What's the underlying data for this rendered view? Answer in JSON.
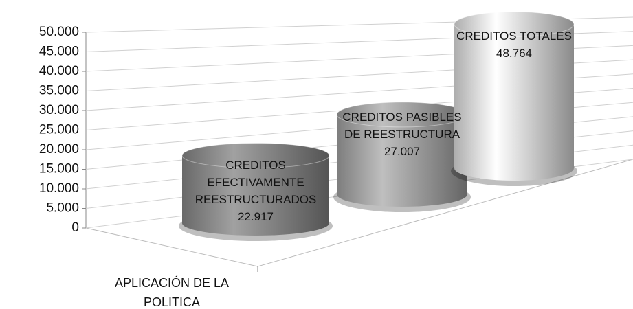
{
  "chart_data": {
    "type": "cylinder",
    "categories": [
      "APLICACIÓN DE LA POLITICA"
    ],
    "series": [
      {
        "name": "CREDITOS EFECTIVAMENTE REESTRUCTURADOS",
        "color": "#8c8c8c",
        "values": [
          22917
        ],
        "value_labels": [
          "22.917"
        ]
      },
      {
        "name": "CREDITOS PASIBLES DE REESTRUCTURA",
        "color": "#a6a6a6",
        "values": [
          27007
        ],
        "value_labels": [
          "27.007"
        ]
      },
      {
        "name": "CREDITOS TOTALES",
        "color": "#e6e6e6",
        "values": [
          48764
        ],
        "value_labels": [
          "48.764"
        ]
      }
    ],
    "ylim": [
      0,
      50000
    ],
    "yticks": [
      0,
      {
        "value": 5000,
        "label": "5.000"
      },
      {
        "value": 10000,
        "label": "10.000"
      },
      {
        "value": 15000,
        "label": "15.000"
      },
      {
        "value": 20000,
        "label": "20.000"
      },
      {
        "value": 25000,
        "label": "25.000"
      },
      {
        "value": 30000,
        "label": "30.000"
      },
      {
        "value": 35000,
        "label": "35.000"
      },
      {
        "value": 40000,
        "label": "40.000"
      },
      {
        "value": 45000,
        "label": "45.000"
      },
      {
        "value": 50000,
        "label": "50.000"
      }
    ],
    "grid": true
  }
}
